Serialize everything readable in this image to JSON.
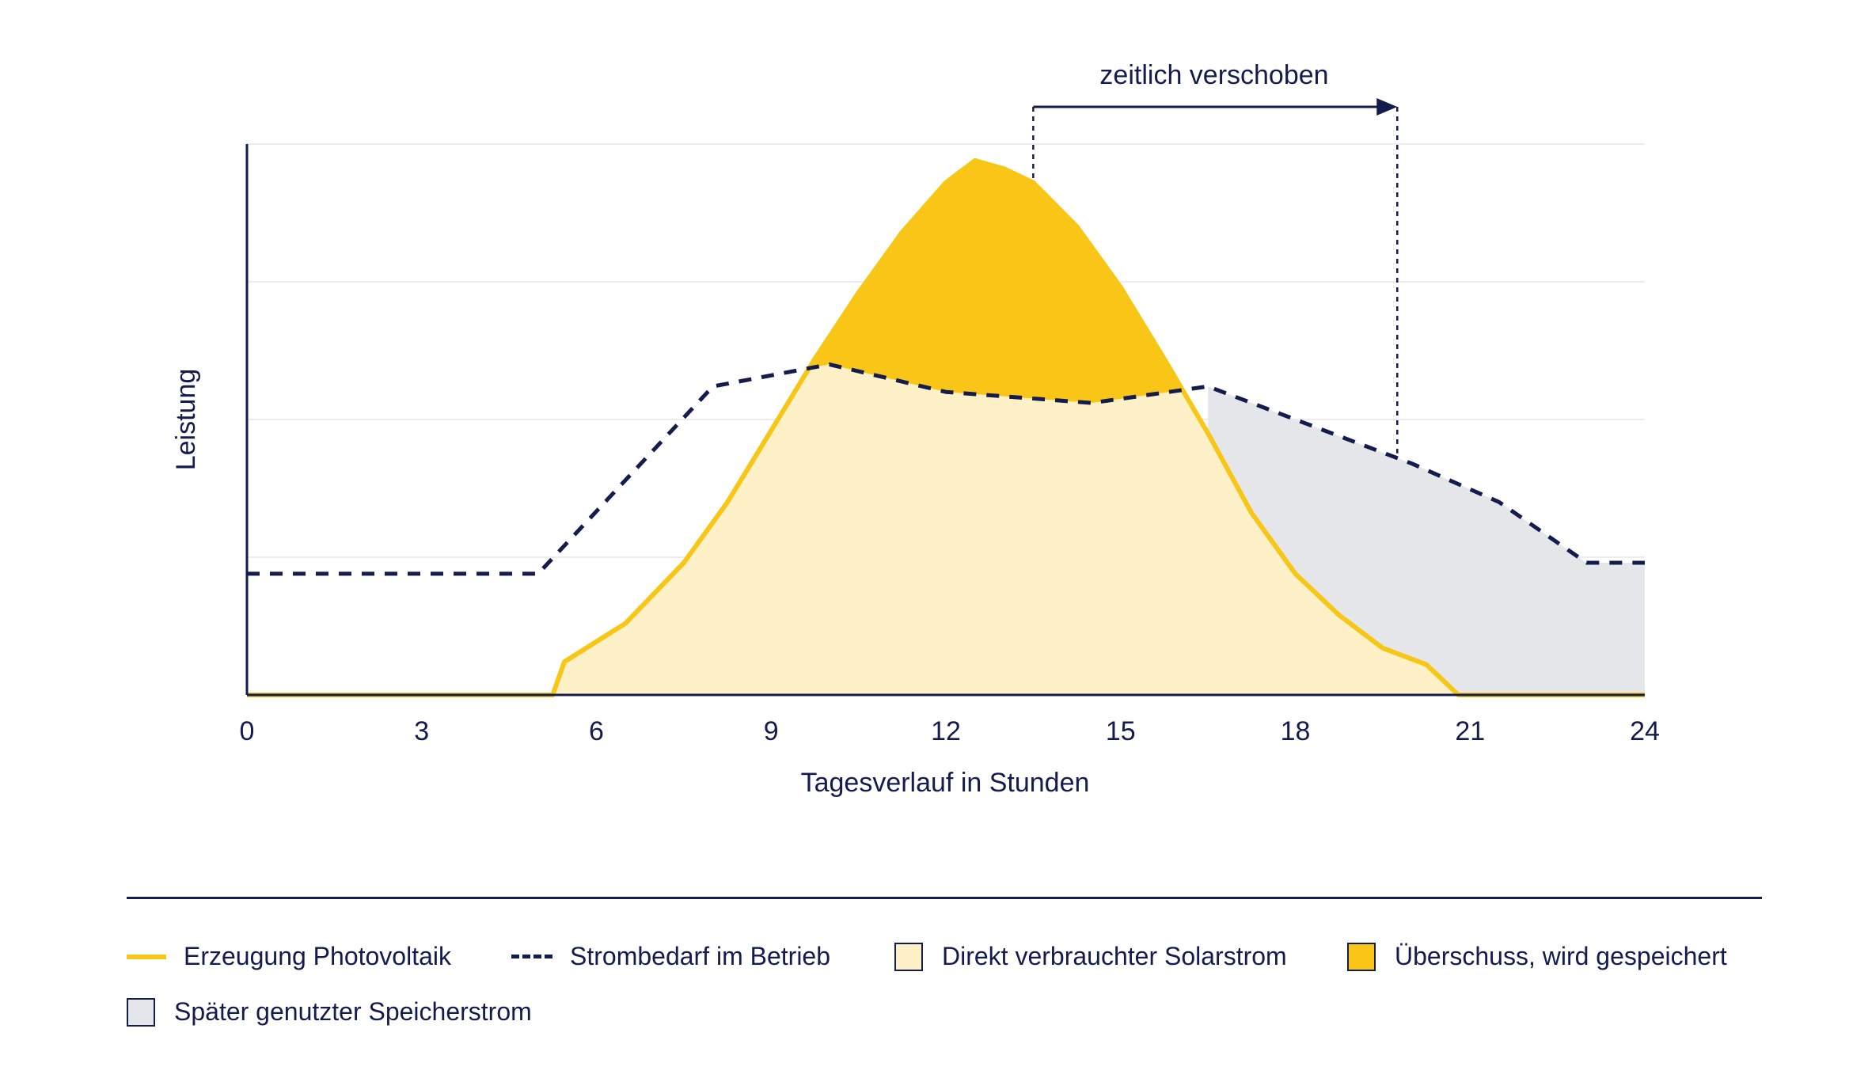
{
  "chart_data": {
    "type": "area",
    "title": "",
    "xlabel": "Tagesverlauf in Stunden",
    "ylabel": "Leistung",
    "xlim": [
      0,
      24
    ],
    "ylim": [
      0,
      100
    ],
    "x_ticks": [
      "0",
      "3",
      "6",
      "9",
      "12",
      "15",
      "18",
      "21",
      "24"
    ],
    "y_ticks_labeled": false,
    "grid": "horizontal",
    "annotation": {
      "text": "zeitlich verschoben",
      "from_x": 13.5,
      "to_x": 19.75
    },
    "series": [
      {
        "name": "Erzeugung Photovoltaik",
        "style": "solid-line",
        "color": "#f7c617",
        "x": [
          0,
          5.25,
          5.45,
          6.5,
          7.5,
          8.25,
          9,
          9.75,
          10.5,
          11.25,
          12,
          12.5,
          13,
          13.5,
          14.25,
          15,
          15.75,
          16.5,
          17.25,
          18,
          18.75,
          19.5,
          20.25,
          20.8,
          21,
          24
        ],
        "y": [
          0,
          0,
          6,
          13,
          24,
          35,
          48,
          61,
          73,
          84,
          93,
          97,
          95.5,
          93,
          85,
          74,
          61,
          47.5,
          33,
          22,
          14.5,
          8.5,
          5.5,
          0,
          0,
          0
        ]
      },
      {
        "name": "Strombedarf im Betrieb",
        "style": "dashed-line",
        "color": "#141b4d",
        "x": [
          0,
          5,
          8,
          10,
          12,
          14.5,
          16.5,
          18,
          20,
          21.5,
          23,
          24
        ],
        "y": [
          22,
          22,
          56,
          60,
          55,
          53,
          56,
          50,
          42,
          35,
          24,
          24
        ]
      }
    ],
    "areas": [
      {
        "name": "Direkt verbrauchter Solarstrom",
        "color": "#fef1c7"
      },
      {
        "name": "Überschuss, wird gespeichert",
        "color": "#f9c618"
      },
      {
        "name": "Später genutzter Speicherstrom",
        "color": "#e4e6ea"
      }
    ],
    "legend_placement": "bottom"
  },
  "legend": {
    "items": [
      {
        "label": "Erzeugung Photovoltaik",
        "icon": "solid-line-swatch",
        "color": "#f7c617"
      },
      {
        "label": "Strombedarf im Betrieb",
        "icon": "dashed-line-swatch",
        "color": "#141b4d"
      },
      {
        "label": "Direkt verbrauchter Solarstrom",
        "icon": "box-swatch",
        "color": "#fef1c7"
      },
      {
        "label": "Überschuss, wird gespeichert",
        "icon": "box-swatch",
        "color": "#f9c618"
      },
      {
        "label": "Später genutzter Speicherstrom",
        "icon": "box-swatch",
        "color": "#e4e6ea"
      }
    ]
  },
  "colors": {
    "navy": "#141b4d",
    "gridline": "#ececf0"
  }
}
